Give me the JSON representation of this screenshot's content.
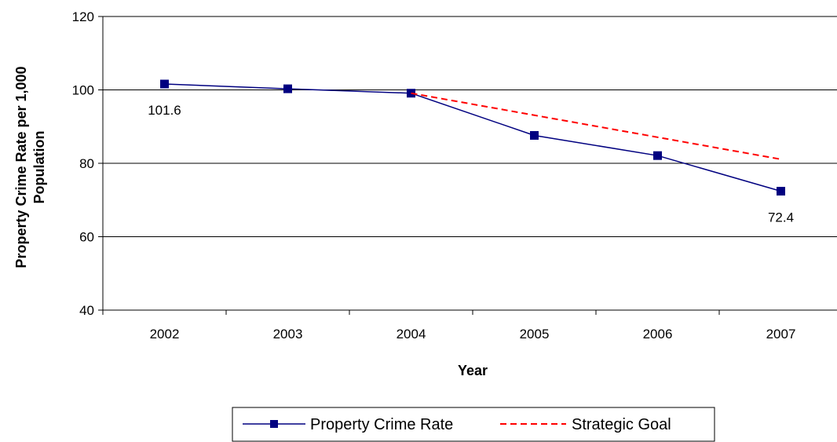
{
  "chart_data": {
    "type": "line",
    "categories": [
      "2002",
      "2003",
      "2004",
      "2005",
      "2006",
      "2007"
    ],
    "series": [
      {
        "name": "Property Crime Rate",
        "values": [
          101.6,
          100.3,
          99.1,
          87.6,
          82.1,
          72.4
        ],
        "color": "#000080",
        "style": "solid",
        "marker": "square"
      },
      {
        "name": "Strategic Goal",
        "values": [
          null,
          null,
          99.1,
          93.1,
          87.1,
          81.1
        ],
        "color": "#FF0000",
        "style": "dashed",
        "marker": "none"
      }
    ],
    "data_labels": [
      {
        "series": 0,
        "index": 0,
        "text": "101.6"
      },
      {
        "series": 0,
        "index": 5,
        "text": "72.4"
      }
    ],
    "title": "",
    "xlabel": "Year",
    "ylabel": "Property Crime Rate per 1,000 Population",
    "ylim": [
      40,
      120
    ],
    "yticks": [
      40,
      60,
      80,
      100,
      120
    ],
    "grid": true,
    "legend_position": "bottom"
  }
}
